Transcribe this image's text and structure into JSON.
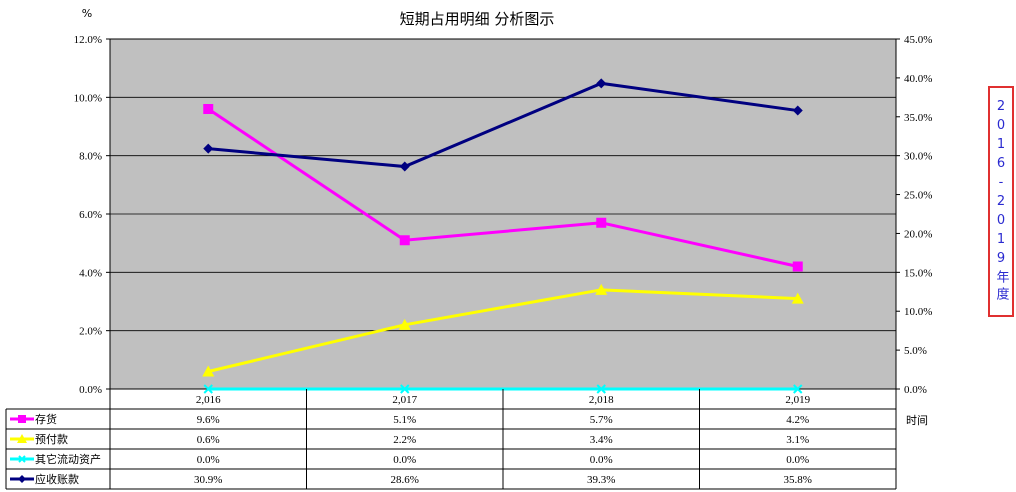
{
  "chart_data": {
    "type": "line",
    "title": "短期占用明细 分析图示",
    "ylabel_left": "%",
    "xlabel": "时间",
    "categories": [
      "2,016",
      "2,017",
      "2,018",
      "2,019"
    ],
    "ylim_left": [
      0,
      12
    ],
    "ylim_right": [
      0,
      45
    ],
    "yticks_left": [
      "0.0%",
      "2.0%",
      "4.0%",
      "6.0%",
      "8.0%",
      "10.0%",
      "12.0%"
    ],
    "yticks_right": [
      "0.0%",
      "5.0%",
      "10.0%",
      "15.0%",
      "20.0%",
      "25.0%",
      "30.0%",
      "35.0%",
      "40.0%",
      "45.0%"
    ],
    "plot_background": "#c0c0c0",
    "grid": true,
    "series": [
      {
        "name": "存货",
        "axis": "left",
        "color": "#ff00ff",
        "marker": "square",
        "values": [
          9.6,
          5.1,
          5.7,
          4.2
        ],
        "labels": [
          "9.6%",
          "5.1%",
          "5.7%",
          "4.2%"
        ]
      },
      {
        "name": "预付款",
        "axis": "left",
        "color": "#ffff00",
        "marker": "triangle",
        "values": [
          0.6,
          2.2,
          3.4,
          3.1
        ],
        "labels": [
          "0.6%",
          "2.2%",
          "3.4%",
          "3.1%"
        ]
      },
      {
        "name": "其它流动资产",
        "axis": "left",
        "color": "#00ffff",
        "marker": "x",
        "values": [
          0.0,
          0.0,
          0.0,
          0.0
        ],
        "labels": [
          "0.0%",
          "0.0%",
          "0.0%",
          "0.0%"
        ]
      },
      {
        "name": "应收账款",
        "axis": "right",
        "color": "#000080",
        "marker": "diamond",
        "values": [
          30.9,
          28.6,
          39.3,
          35.8
        ],
        "labels": [
          "30.9%",
          "28.6%",
          "39.3%",
          "35.8%"
        ]
      }
    ]
  },
  "side_label": "2016-2019年度"
}
